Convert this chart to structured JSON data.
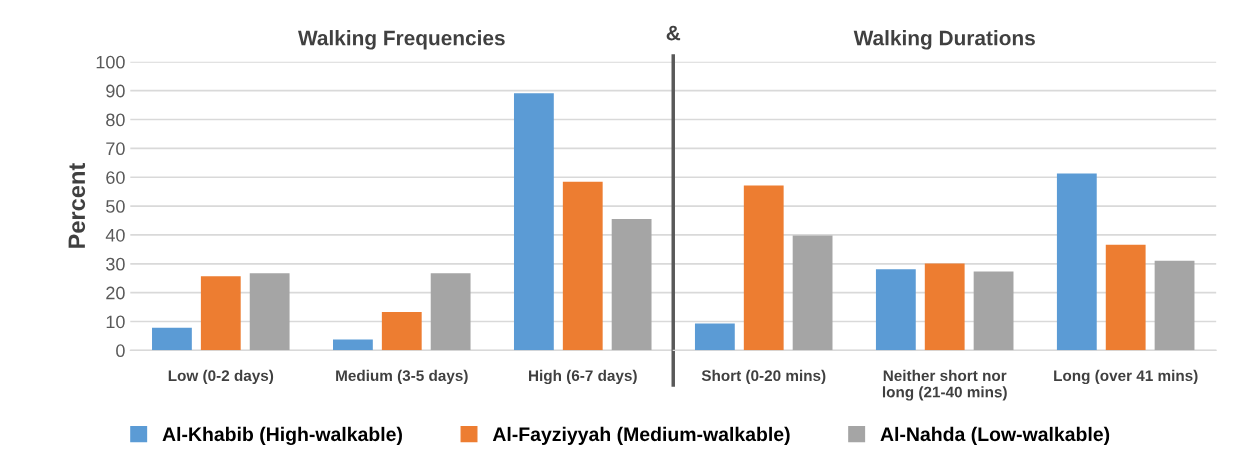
{
  "chart_data": [
    {
      "type": "bar",
      "title": "Walking Frequencies",
      "ylabel": "Percent",
      "annotations": [
        "&"
      ],
      "categories": [
        "Low (0-2 days)",
        "Medium (3-5 days)",
        "High (6-7 days)"
      ],
      "series": [
        {
          "name": "Al-Khabib (High-walkable)",
          "color": "#5b9bd5",
          "values": [
            7.8,
            3.8,
            89.1
          ]
        },
        {
          "name": "Al-Fayziyyah (Medium-walkable)",
          "color": "#ed7d31",
          "values": [
            25.7,
            13.3,
            58.4
          ]
        },
        {
          "name": "Al-Nahda (Low-walkable)",
          "color": "#a5a5a5",
          "values": [
            26.7,
            26.7,
            45.5
          ]
        }
      ],
      "ylim": [
        0,
        100
      ],
      "yticks": [
        0,
        10,
        20,
        30,
        40,
        50,
        60,
        70,
        80,
        90,
        100
      ],
      "grid": "y",
      "legend": "bottom"
    },
    {
      "type": "bar",
      "title": "Walking Durations",
      "categories": [
        "Short (0-20 mins)",
        "Neither short nor\nlong (21-40 mins)",
        "Long (over 41 mins)"
      ],
      "series": [
        {
          "color": "#5b9bd5",
          "values": [
            9.3,
            28.1,
            61.3
          ]
        },
        {
          "color": "#ed7d31",
          "values": [
            57.1,
            30.1,
            36.6
          ]
        },
        {
          "color": "#a5a5a5",
          "values": [
            39.8,
            27.3,
            31.1
          ]
        }
      ],
      "ylim": [
        0,
        100
      ],
      "yticks": [
        0,
        10,
        20,
        30,
        40,
        50,
        60,
        70,
        80,
        90,
        100
      ],
      "grid": "y",
      "tick_labels": "x"
    }
  ]
}
